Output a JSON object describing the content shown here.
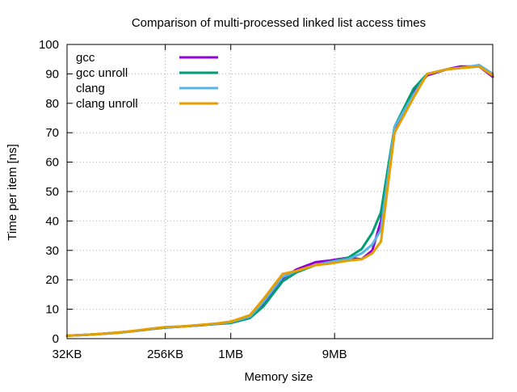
{
  "chart_data": {
    "type": "line",
    "title": "Comparison of multi-processed linked list access times",
    "xlabel": "Memory size",
    "ylabel": "Time per item [ns]",
    "x_scale": "log2",
    "x_unit": "bytes",
    "xlim": [
      32768,
      268435456
    ],
    "ylim": [
      0,
      100
    ],
    "x_ticks": [
      {
        "value": 32768,
        "label": "32KB"
      },
      {
        "value": 262144,
        "label": "256KB"
      },
      {
        "value": 1048576,
        "label": "1MB"
      },
      {
        "value": 9437184,
        "label": "9MB"
      }
    ],
    "y_ticks": [
      0,
      10,
      20,
      30,
      40,
      50,
      60,
      70,
      80,
      90,
      100
    ],
    "grid": true,
    "legend_position": "top-left",
    "x": [
      32768,
      49152,
      65536,
      98304,
      131072,
      196608,
      262144,
      393216,
      524288,
      786432,
      1048576,
      1572864,
      2097152,
      3145728,
      4194304,
      6291456,
      8388608,
      12582912,
      16777216,
      20971520,
      25165824,
      33554432,
      50331648,
      67108864,
      100663296,
      134217728,
      201326592,
      268435456
    ],
    "series": [
      {
        "name": "gcc",
        "color": "#9400d3",
        "values": [
          1,
          1.3,
          1.6,
          2.1,
          2.5,
          3.3,
          3.8,
          4.2,
          4.5,
          5,
          5.5,
          7.3,
          12,
          20.5,
          23.5,
          26,
          26.5,
          27.5,
          27,
          30,
          40,
          70,
          84,
          89.5,
          91.5,
          92.5,
          92.5,
          89
        ]
      },
      {
        "name": "gcc unroll",
        "color": "#009e73",
        "values": [
          1,
          1.3,
          1.6,
          2,
          2.5,
          3.3,
          3.8,
          4.2,
          4.5,
          5,
          5.3,
          7,
          11,
          19.5,
          22.5,
          25,
          26,
          27.5,
          30.5,
          36,
          43,
          72,
          85,
          90,
          91.5,
          92,
          92.5,
          89.5
        ]
      },
      {
        "name": "clang",
        "color": "#56b4e9",
        "values": [
          1,
          1.3,
          1.6,
          2.1,
          2.5,
          3.4,
          3.9,
          4.2,
          4.6,
          5.1,
          5.6,
          7.5,
          12.5,
          21,
          23,
          25,
          26,
          27,
          29,
          32,
          37,
          72,
          83,
          90,
          91.5,
          92,
          93,
          90
        ]
      },
      {
        "name": "clang unroll",
        "color": "#e69f00",
        "values": [
          1,
          1.3,
          1.6,
          2.1,
          2.6,
          3.4,
          3.9,
          4.2,
          4.6,
          5.2,
          5.8,
          8,
          13.5,
          22,
          23,
          25,
          25.5,
          26.5,
          27,
          29,
          33,
          70,
          82,
          90,
          91.5,
          92,
          92.5,
          89.5
        ]
      }
    ]
  }
}
